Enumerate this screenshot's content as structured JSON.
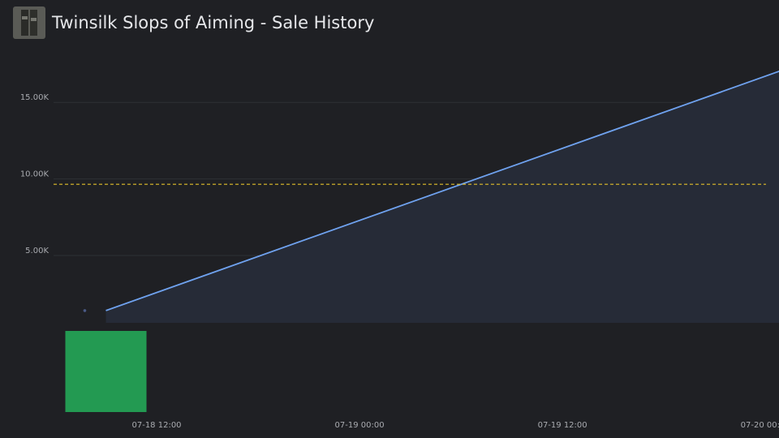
{
  "chart_data": {
    "type": "line",
    "title": "Twinsilk Slops of Aiming - Sale History",
    "series": [
      {
        "color": "#6fa2ef",
        "area_color": "#262b37",
        "x": [
          "07-18 09:00",
          "07-20 01:00"
        ],
        "values": [
          1400,
          17100
        ]
      }
    ],
    "markers": {
      "color": "#4a5a86",
      "x": [
        "07-18 07:45"
      ],
      "values": [
        1400
      ]
    },
    "reference_line": {
      "value": 9650,
      "color": "#e3c02a"
    },
    "volume": {
      "color": "#239a52",
      "bins": [
        "07-18 06:36",
        "07-18 11:24"
      ],
      "values": [
        1
      ],
      "ylim": [
        0,
        1
      ]
    },
    "xlim": [
      "07-18 06:00",
      "07-20 01:00"
    ],
    "xticks": [
      "07-18 12:00",
      "07-19 00:00",
      "07-19 12:00",
      "07-20 00:00"
    ],
    "ylim": [
      600,
      17500
    ],
    "yticks": [
      {
        "value": 5000,
        "label": "5.00K"
      },
      {
        "value": 10000,
        "label": "10.00K"
      },
      {
        "value": 15000,
        "label": "15.00K"
      }
    ],
    "grid": true
  }
}
